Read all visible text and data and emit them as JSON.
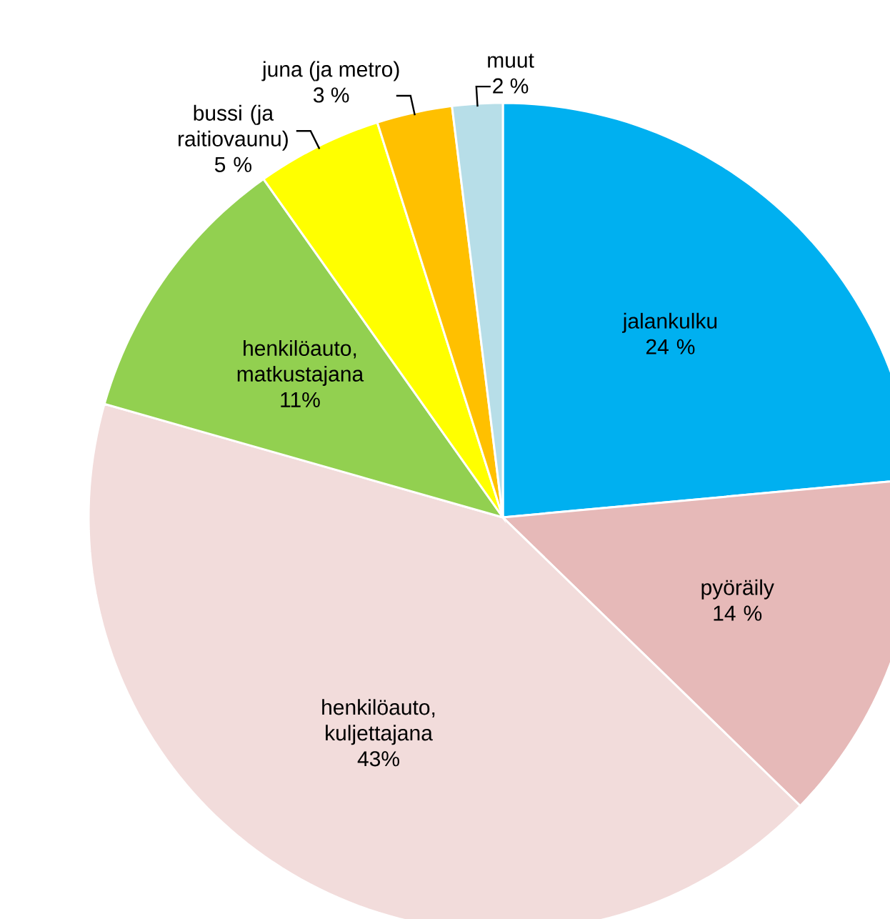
{
  "chart_data": {
    "type": "pie",
    "categories": [
      "jalankulku",
      "pyöräily",
      "henkilöauto, kuljettajana",
      "henkilöauto, matkustajana",
      "bussi (ja raitiovaunu)",
      "juna (ja metro)",
      "muut"
    ],
    "values": [
      24,
      14,
      43,
      11,
      5,
      3,
      2
    ],
    "value_labels": [
      "24 %",
      "14 %",
      "43%",
      "11%",
      "5 %",
      "3 %",
      "2 %"
    ],
    "colors": [
      "#00b0f0",
      "#e6b9b8",
      "#f2dcdb",
      "#92d050",
      "#ffff00",
      "#ffc000",
      "#b7dee8"
    ]
  }
}
